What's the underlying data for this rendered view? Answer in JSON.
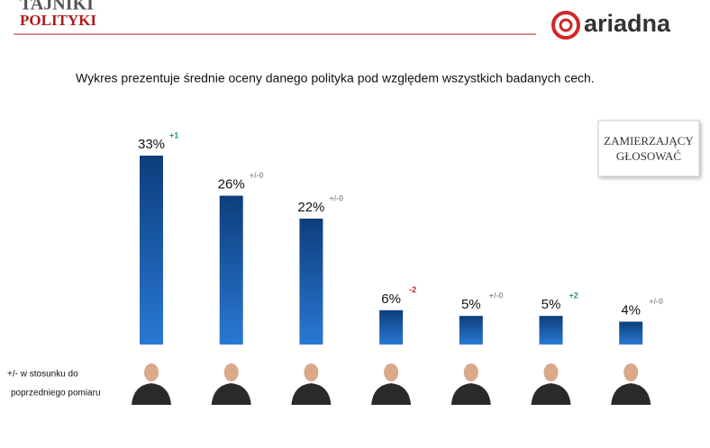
{
  "header": {
    "logo_top": "TAJNIKI",
    "logo_bottom": "POLITYKI",
    "brand": "ariadna"
  },
  "chart_data": {
    "type": "bar",
    "subtitle": "Wykres prezentuje średnie oceny danego polityka pod względem wszystkich badanych cech.",
    "badge": [
      "ZAMIERZAJĄCY",
      "GŁOSOWAĆ"
    ],
    "note": [
      "+/- w stosunku do",
      "poprzedniego pomiaru"
    ],
    "categories": [
      null,
      null,
      null,
      null,
      null,
      null,
      null
    ],
    "values": [
      33,
      26,
      22,
      6,
      5,
      5,
      4
    ],
    "value_labels": [
      "33%",
      "26%",
      "22%",
      "6%",
      "5%",
      "5%",
      "4%"
    ],
    "changes": [
      "+1",
      "+/-0",
      "+/-0",
      "-2",
      "+/-0",
      "+2",
      "+/-0"
    ],
    "change_colors": [
      "#2e9a4e",
      "#999999",
      "#999999",
      "#cc2222",
      "#999999",
      "#2e9a4e",
      "#999999"
    ],
    "color": "#1a5aaa"
  }
}
